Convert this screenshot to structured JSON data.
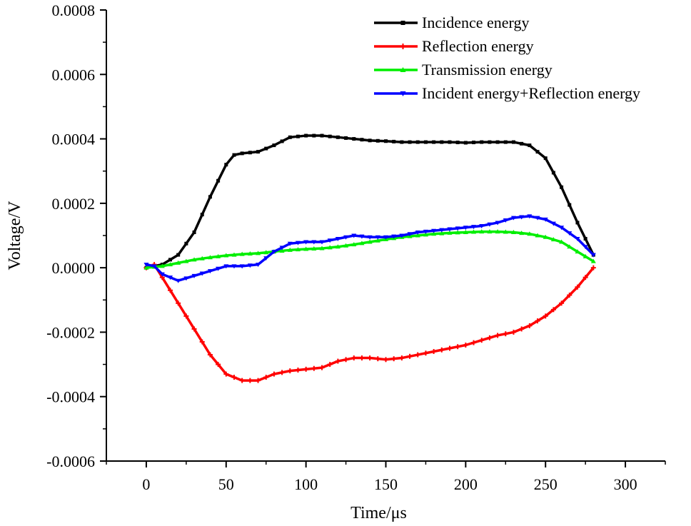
{
  "chart_data": {
    "type": "line",
    "title": "",
    "xlabel": "Time/μs",
    "ylabel": "Voltage/V",
    "xlim": [
      -25,
      325
    ],
    "ylim": [
      -0.0006,
      0.0008
    ],
    "x_ticks": [
      0,
      50,
      100,
      150,
      200,
      250,
      300
    ],
    "x_tick_labels": [
      "0",
      "50",
      "100",
      "150",
      "200",
      "250",
      "300"
    ],
    "y_ticks": [
      -0.0006,
      -0.0004,
      -0.0002,
      0,
      0.0002,
      0.0004,
      0.0006,
      0.0008
    ],
    "y_tick_labels": [
      "-0.0006",
      "-0.0004",
      "-0.0002",
      "0.0000",
      "0.0002",
      "0.0004",
      "0.0006",
      "0.0008"
    ],
    "grid": false,
    "legend_position": "top-right",
    "series": [
      {
        "name": "Incidence energy",
        "color": "#000000",
        "marker": "square",
        "points": [
          [
            0,
            0
          ],
          [
            10,
            1e-05
          ],
          [
            20,
            4e-05
          ],
          [
            30,
            0.00011
          ],
          [
            40,
            0.00022
          ],
          [
            50,
            0.00032
          ],
          [
            55,
            0.00035
          ],
          [
            60,
            0.000355
          ],
          [
            70,
            0.00036
          ],
          [
            80,
            0.00038
          ],
          [
            90,
            0.000405
          ],
          [
            100,
            0.00041
          ],
          [
            110,
            0.00041
          ],
          [
            120,
            0.000405
          ],
          [
            130,
            0.0004
          ],
          [
            140,
            0.000395
          ],
          [
            150,
            0.000393
          ],
          [
            160,
            0.00039
          ],
          [
            170,
            0.00039
          ],
          [
            180,
            0.00039
          ],
          [
            190,
            0.00039
          ],
          [
            200,
            0.000388
          ],
          [
            210,
            0.00039
          ],
          [
            220,
            0.00039
          ],
          [
            230,
            0.00039
          ],
          [
            240,
            0.00038
          ],
          [
            250,
            0.00034
          ],
          [
            260,
            0.00025
          ],
          [
            270,
            0.00014
          ],
          [
            275,
            9e-05
          ],
          [
            280,
            4e-05
          ]
        ]
      },
      {
        "name": "Reflection energy",
        "color": "#ff0000",
        "marker": "plus",
        "points": [
          [
            0,
            0
          ],
          [
            5,
            1e-05
          ],
          [
            10,
            -3e-05
          ],
          [
            20,
            -0.00011
          ],
          [
            30,
            -0.00019
          ],
          [
            40,
            -0.00027
          ],
          [
            50,
            -0.00033
          ],
          [
            60,
            -0.00035
          ],
          [
            70,
            -0.00035
          ],
          [
            80,
            -0.00033
          ],
          [
            90,
            -0.00032
          ],
          [
            100,
            -0.000315
          ],
          [
            110,
            -0.00031
          ],
          [
            120,
            -0.00029
          ],
          [
            130,
            -0.00028
          ],
          [
            140,
            -0.00028
          ],
          [
            150,
            -0.000285
          ],
          [
            160,
            -0.00028
          ],
          [
            170,
            -0.00027
          ],
          [
            180,
            -0.00026
          ],
          [
            190,
            -0.00025
          ],
          [
            200,
            -0.00024
          ],
          [
            210,
            -0.000225
          ],
          [
            220,
            -0.00021
          ],
          [
            230,
            -0.0002
          ],
          [
            240,
            -0.00018
          ],
          [
            250,
            -0.00015
          ],
          [
            260,
            -0.00011
          ],
          [
            270,
            -6e-05
          ],
          [
            280,
            0
          ]
        ]
      },
      {
        "name": "Transmission energy",
        "color": "#00ee00",
        "marker": "triangle-up",
        "points": [
          [
            0,
            0
          ],
          [
            10,
            5e-06
          ],
          [
            20,
            1.5e-05
          ],
          [
            30,
            2.5e-05
          ],
          [
            40,
            3.2e-05
          ],
          [
            50,
            3.8e-05
          ],
          [
            60,
            4.2e-05
          ],
          [
            70,
            4.5e-05
          ],
          [
            80,
            5e-05
          ],
          [
            90,
            5.5e-05
          ],
          [
            100,
            5.8e-05
          ],
          [
            110,
            6e-05
          ],
          [
            120,
            6.5e-05
          ],
          [
            130,
            7.2e-05
          ],
          [
            140,
            8e-05
          ],
          [
            150,
            8.8e-05
          ],
          [
            160,
            9.5e-05
          ],
          [
            170,
            0.0001
          ],
          [
            180,
            0.000105
          ],
          [
            190,
            0.000108
          ],
          [
            200,
            0.00011
          ],
          [
            210,
            0.000112
          ],
          [
            220,
            0.000112
          ],
          [
            230,
            0.00011
          ],
          [
            240,
            0.000105
          ],
          [
            250,
            9.5e-05
          ],
          [
            260,
            8e-05
          ],
          [
            270,
            5e-05
          ],
          [
            280,
            2e-05
          ]
        ]
      },
      {
        "name": "Incident energy+Reflection energy",
        "color": "#0000ff",
        "marker": "triangle-down",
        "points": [
          [
            0,
            1e-05
          ],
          [
            5,
            5e-06
          ],
          [
            10,
            -2e-05
          ],
          [
            20,
            -4e-05
          ],
          [
            30,
            -2.5e-05
          ],
          [
            40,
            -1e-05
          ],
          [
            50,
            5e-06
          ],
          [
            60,
            5e-06
          ],
          [
            70,
            1e-05
          ],
          [
            80,
            5e-05
          ],
          [
            90,
            7.5e-05
          ],
          [
            100,
            8e-05
          ],
          [
            110,
            8e-05
          ],
          [
            120,
            9e-05
          ],
          [
            130,
            0.0001
          ],
          [
            140,
            9.5e-05
          ],
          [
            150,
            9.5e-05
          ],
          [
            160,
            0.0001
          ],
          [
            170,
            0.00011
          ],
          [
            180,
            0.000115
          ],
          [
            190,
            0.00012
          ],
          [
            200,
            0.000125
          ],
          [
            210,
            0.00013
          ],
          [
            220,
            0.00014
          ],
          [
            230,
            0.000155
          ],
          [
            240,
            0.00016
          ],
          [
            250,
            0.00015
          ],
          [
            260,
            0.000125
          ],
          [
            270,
            9e-05
          ],
          [
            280,
            4e-05
          ]
        ]
      }
    ]
  }
}
